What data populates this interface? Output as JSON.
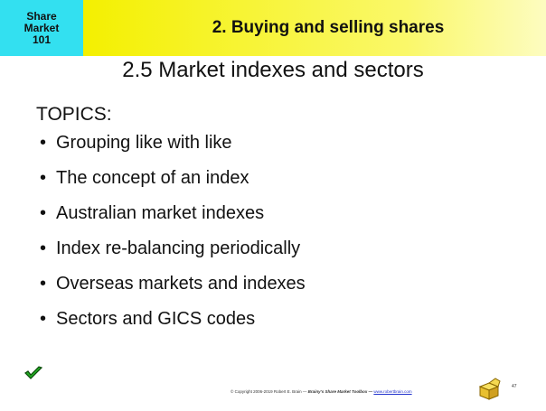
{
  "header": {
    "badge": [
      "Share",
      "Market",
      "101"
    ],
    "title": "2. Buying and selling shares"
  },
  "subtitle": "2.5 Market indexes and sectors",
  "topics_label": "TOPICS:",
  "topics": [
    "Grouping like with like",
    "The concept of an index",
    "Australian market indexes",
    "Index re-balancing periodically",
    "Overseas markets and indexes",
    "Sectors and GICS codes"
  ],
  "footer": {
    "copyright": "© Copyright 2006-2019 Robert E. Brain —",
    "product": "Brainy's Share Market Toolbox —",
    "url": "www.robertbrain.com",
    "page": "47"
  }
}
